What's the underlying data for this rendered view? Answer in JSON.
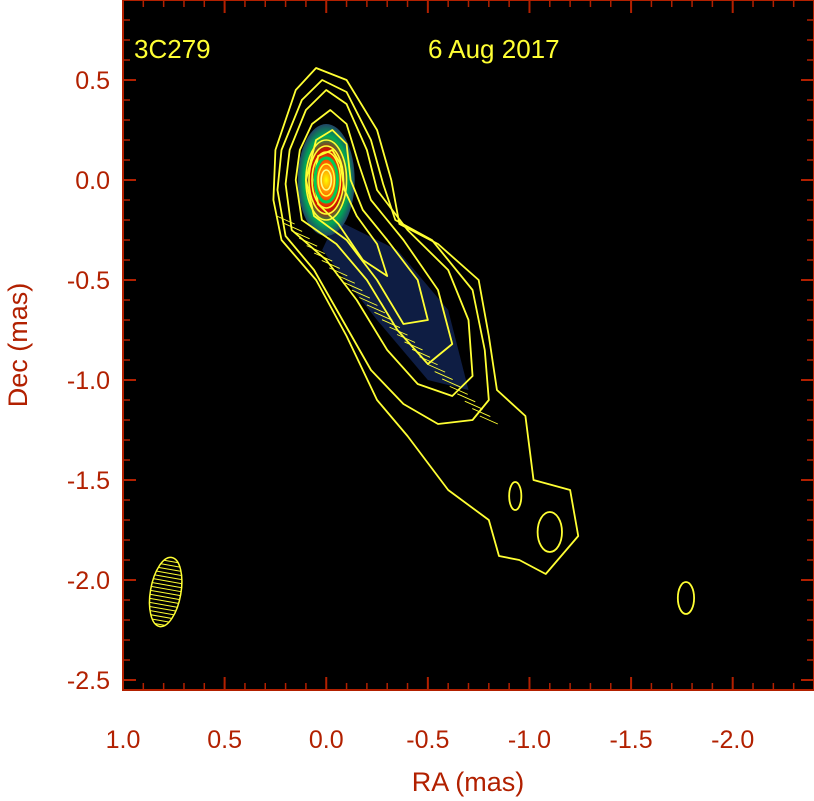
{
  "chart_data": {
    "type": "contour",
    "source_name": "3C279",
    "date": "6 Aug 2017",
    "xlabel": "RA (mas)",
    "ylabel": "Dec (mas)",
    "xlim": [
      1.0,
      -2.4
    ],
    "ylim": [
      -2.55,
      0.9
    ],
    "x_ticks": [
      1.0,
      0.5,
      0.0,
      -0.5,
      -1.0,
      -1.5,
      -2.0
    ],
    "x_tick_labels": [
      "1.0",
      "0.5",
      "0.0",
      "-0.5",
      "-1.0",
      "-1.5",
      "-2.0"
    ],
    "y_ticks": [
      0.5,
      0.0,
      -0.5,
      -1.0,
      -1.5,
      -2.0,
      -2.5
    ],
    "y_tick_labels": [
      "0.5",
      "0.0",
      "-0.5",
      "-1.0",
      "-1.5",
      "-2.0",
      "-2.5"
    ],
    "x_axis_reversed": true,
    "grid": false,
    "background_color": "#000000",
    "axis_color": "#b22000",
    "contour_color": "#ffff33",
    "core": {
      "x": 0.0,
      "y": 0.0
    },
    "jet_direction": "south-west",
    "beam": {
      "x": 0.79,
      "y": -2.06,
      "major": 0.35,
      "minor": 0.15,
      "pa_deg": -10
    },
    "colormap_peak": [
      "#ffff00",
      "#ff6600",
      "#cc1100",
      "#00aa55",
      "#224466"
    ],
    "contour_outlines": [
      [
        [
          0.15,
          0.45
        ],
        [
          0.05,
          0.56
        ],
        [
          -0.1,
          0.5
        ],
        [
          -0.25,
          0.25
        ],
        [
          -0.32,
          0.0
        ],
        [
          -0.36,
          -0.22
        ],
        [
          -0.55,
          -0.32
        ],
        [
          -0.75,
          -0.5
        ],
        [
          -0.8,
          -0.78
        ],
        [
          -0.84,
          -1.05
        ],
        [
          -0.98,
          -1.18
        ],
        [
          -1.02,
          -1.5
        ],
        [
          -1.2,
          -1.55
        ],
        [
          -1.24,
          -1.78
        ],
        [
          -1.08,
          -1.97
        ],
        [
          -0.95,
          -1.9
        ],
        [
          -0.85,
          -1.88
        ],
        [
          -0.8,
          -1.7
        ],
        [
          -0.6,
          -1.55
        ],
        [
          -0.4,
          -1.28
        ],
        [
          -0.25,
          -1.1
        ],
        [
          -0.1,
          -0.78
        ],
        [
          0.05,
          -0.5
        ],
        [
          0.22,
          -0.3
        ],
        [
          0.26,
          -0.1
        ],
        [
          0.25,
          0.15
        ],
        [
          0.15,
          0.45
        ]
      ],
      [
        [
          0.12,
          0.4
        ],
        [
          0.02,
          0.5
        ],
        [
          -0.1,
          0.44
        ],
        [
          -0.22,
          0.2
        ],
        [
          -0.28,
          -0.02
        ],
        [
          -0.34,
          -0.2
        ],
        [
          -0.52,
          -0.3
        ],
        [
          -0.72,
          -0.55
        ],
        [
          -0.78,
          -0.85
        ],
        [
          -0.8,
          -1.1
        ],
        [
          -0.72,
          -1.2
        ],
        [
          -0.55,
          -1.22
        ],
        [
          -0.38,
          -1.12
        ],
        [
          -0.22,
          -0.95
        ],
        [
          -0.08,
          -0.7
        ],
        [
          0.06,
          -0.45
        ],
        [
          0.2,
          -0.28
        ],
        [
          0.24,
          -0.05
        ],
        [
          0.22,
          0.15
        ],
        [
          0.12,
          0.4
        ]
      ],
      [
        [
          0.1,
          0.35
        ],
        [
          0.0,
          0.45
        ],
        [
          -0.1,
          0.38
        ],
        [
          -0.2,
          0.15
        ],
        [
          -0.25,
          -0.05
        ],
        [
          -0.4,
          -0.25
        ],
        [
          -0.6,
          -0.45
        ],
        [
          -0.7,
          -0.7
        ],
        [
          -0.72,
          -0.98
        ],
        [
          -0.62,
          -1.08
        ],
        [
          -0.45,
          -1.02
        ],
        [
          -0.3,
          -0.85
        ],
        [
          -0.15,
          -0.6
        ],
        [
          0.0,
          -0.4
        ],
        [
          0.17,
          -0.25
        ],
        [
          0.2,
          -0.02
        ],
        [
          0.18,
          0.15
        ],
        [
          0.1,
          0.35
        ]
      ],
      [
        [
          0.07,
          0.28
        ],
        [
          -0.02,
          0.35
        ],
        [
          -0.1,
          0.28
        ],
        [
          -0.16,
          0.08
        ],
        [
          -0.22,
          -0.1
        ],
        [
          -0.38,
          -0.3
        ],
        [
          -0.55,
          -0.55
        ],
        [
          -0.62,
          -0.82
        ],
        [
          -0.5,
          -0.92
        ],
        [
          -0.35,
          -0.75
        ],
        [
          -0.2,
          -0.5
        ],
        [
          -0.05,
          -0.32
        ],
        [
          0.12,
          -0.2
        ],
        [
          0.15,
          0.0
        ],
        [
          0.13,
          0.15
        ],
        [
          0.07,
          0.28
        ]
      ],
      [
        [
          0.05,
          0.2
        ],
        [
          -0.03,
          0.25
        ],
        [
          -0.1,
          0.18
        ],
        [
          -0.12,
          0.0
        ],
        [
          -0.18,
          -0.15
        ],
        [
          -0.3,
          -0.3
        ],
        [
          -0.45,
          -0.5
        ],
        [
          -0.5,
          -0.7
        ],
        [
          -0.38,
          -0.72
        ],
        [
          -0.25,
          -0.5
        ],
        [
          -0.1,
          -0.3
        ],
        [
          0.06,
          -0.18
        ],
        [
          0.1,
          0.0
        ],
        [
          0.05,
          0.2
        ]
      ],
      [
        [
          0.04,
          0.12
        ],
        [
          -0.03,
          0.15
        ],
        [
          -0.07,
          0.08
        ],
        [
          -0.09,
          -0.05
        ],
        [
          -0.15,
          -0.18
        ],
        [
          -0.25,
          -0.32
        ],
        [
          -0.3,
          -0.48
        ],
        [
          -0.18,
          -0.4
        ],
        [
          -0.06,
          -0.22
        ],
        [
          0.04,
          -0.12
        ],
        [
          0.06,
          0.0
        ],
        [
          0.04,
          0.12
        ]
      ]
    ],
    "core_ellipses": [
      {
        "rx": 0.1,
        "ry": 0.2,
        "color": "#ffff33"
      },
      {
        "rx": 0.085,
        "ry": 0.17,
        "color": "#ffff33"
      },
      {
        "rx": 0.07,
        "ry": 0.14,
        "color": "#ffff33"
      },
      {
        "rx": 0.055,
        "ry": 0.11,
        "color": "#00cc55"
      },
      {
        "rx": 0.04,
        "ry": 0.08,
        "color": "#ffff33"
      },
      {
        "rx": 0.025,
        "ry": 0.05,
        "color": "#ffff88"
      }
    ],
    "isolated_contours": [
      {
        "x": -0.93,
        "y": -1.58,
        "rx": 0.03,
        "ry": 0.07
      },
      {
        "x": -1.1,
        "y": -1.76,
        "rx": 0.06,
        "ry": 0.1
      },
      {
        "x": -1.77,
        "y": -2.09,
        "rx": 0.04,
        "ry": 0.08
      }
    ]
  }
}
